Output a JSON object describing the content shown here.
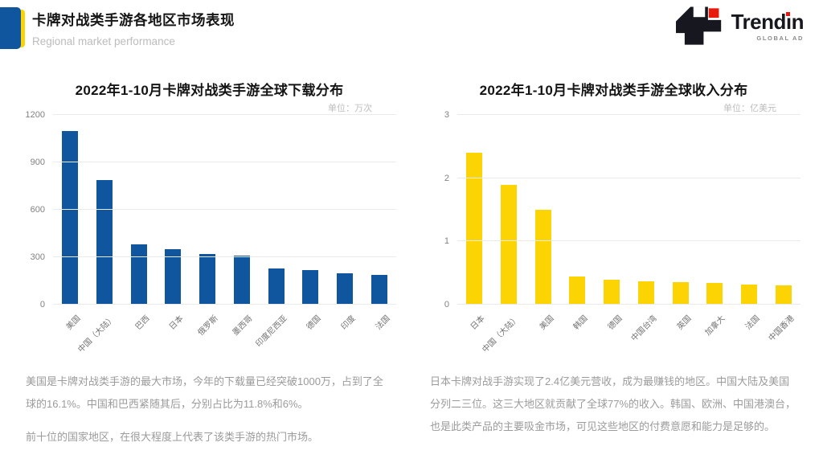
{
  "theme": {
    "blue": "#10569f",
    "yellow": "#fcd303",
    "logo_black": "#17171f",
    "logo_red": "#e8180c"
  },
  "header": {
    "title": "卡牌对战类手游各地区市场表现",
    "subtitle": "Regional market performance"
  },
  "logo": {
    "word_pre": "Trend",
    "word_i_base": "ı",
    "word_post": "n",
    "tagline": "GLOBAL AD"
  },
  "chart_data": [
    {
      "type": "bar",
      "title": "2022年1-10月卡牌对战类手游全球下载分布",
      "unit": "单位：万次",
      "categories": [
        "美国",
        "中国（大陆）",
        "巴西",
        "日本",
        "俄罗斯",
        "墨西哥",
        "印度尼西亚",
        "德国",
        "印度",
        "法国"
      ],
      "values": [
        1100,
        790,
        380,
        350,
        320,
        310,
        230,
        220,
        200,
        190
      ],
      "ylim": [
        0,
        1200
      ],
      "yticks": [
        0,
        300,
        600,
        900,
        1200
      ],
      "bar_color": "#10569f",
      "grid": true,
      "legend": false
    },
    {
      "type": "bar",
      "title": "2022年1-10月卡牌对战类手游全球收入分布",
      "unit": "单位：亿美元",
      "categories": [
        "日本",
        "中国（大陆）",
        "美国",
        "韩国",
        "德国",
        "中国台湾",
        "英国",
        "加拿大",
        "法国",
        "中国香港"
      ],
      "values": [
        2.4,
        1.9,
        1.5,
        0.45,
        0.4,
        0.37,
        0.35,
        0.34,
        0.32,
        0.3
      ],
      "ylim": [
        0,
        3
      ],
      "yticks": [
        0,
        1,
        2,
        3
      ],
      "bar_color": "#fcd303",
      "grid": true,
      "legend": false
    }
  ],
  "notes": {
    "left": [
      "美国是卡牌对战类手游的最大市场，今年的下载量已经突破1000万，占到了全球的16.1%。中国和巴西紧随其后，分别占比为11.8%和6%。",
      "前十位的国家地区，在很大程度上代表了该类手游的热门市场。"
    ],
    "right": [
      "日本卡牌对战手游实现了2.4亿美元营收，成为最赚钱的地区。中国大陆及美国分列二三位。这三大地区就贡献了全球77%的收入。韩国、欧洲、中国港澳台，也是此类产品的主要吸金市场，可见这些地区的付费意愿和能力是足够的。"
    ]
  }
}
